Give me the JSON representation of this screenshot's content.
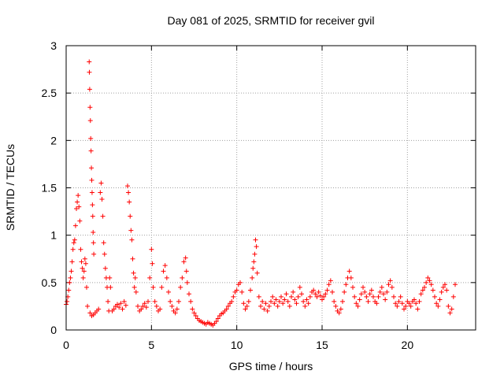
{
  "chart_data": {
    "type": "scatter",
    "title": "Day 081 of 2025, SRMTID for receiver gvil",
    "xlabel": "GPS time / hours",
    "ylabel": "SRMTID / TECUs",
    "xlim": [
      0,
      24
    ],
    "ylim": [
      0,
      3
    ],
    "x_ticks": [
      "0",
      "5",
      "10",
      "15",
      "20"
    ],
    "y_ticks": [
      "0",
      "0.5",
      "1",
      "1.5",
      "2",
      "2.5",
      "3"
    ],
    "grid": true,
    "marker": "+",
    "marker_color": "#ff0000",
    "series": [
      {
        "name": "SRMTID",
        "points": [
          [
            0.0,
            0.27
          ],
          [
            0.05,
            0.3
          ],
          [
            0.1,
            0.35
          ],
          [
            0.15,
            0.42
          ],
          [
            0.2,
            0.5
          ],
          [
            0.25,
            0.55
          ],
          [
            0.3,
            0.62
          ],
          [
            0.35,
            0.72
          ],
          [
            0.4,
            0.85
          ],
          [
            0.45,
            0.92
          ],
          [
            0.5,
            0.95
          ],
          [
            0.55,
            1.1
          ],
          [
            0.6,
            1.28
          ],
          [
            0.65,
            1.35
          ],
          [
            0.7,
            1.42
          ],
          [
            0.75,
            1.3
          ],
          [
            0.8,
            1.15
          ],
          [
            0.85,
            0.85
          ],
          [
            0.9,
            0.72
          ],
          [
            0.95,
            0.65
          ],
          [
            1.0,
            0.55
          ],
          [
            1.05,
            0.62
          ],
          [
            1.1,
            0.75
          ],
          [
            1.15,
            0.7
          ],
          [
            1.2,
            0.45
          ],
          [
            1.25,
            0.25
          ],
          [
            1.35,
            2.83
          ],
          [
            1.36,
            2.72
          ],
          [
            1.38,
            2.54
          ],
          [
            1.4,
            2.35
          ],
          [
            1.42,
            2.21
          ],
          [
            1.44,
            2.02
          ],
          [
            1.46,
            1.89
          ],
          [
            1.48,
            1.71
          ],
          [
            1.5,
            1.58
          ],
          [
            1.52,
            1.45
          ],
          [
            1.54,
            1.32
          ],
          [
            1.56,
            1.2
          ],
          [
            1.58,
            1.03
          ],
          [
            1.6,
            0.92
          ],
          [
            1.62,
            0.8
          ],
          [
            1.4,
            0.18
          ],
          [
            1.5,
            0.15
          ],
          [
            1.6,
            0.16
          ],
          [
            1.7,
            0.18
          ],
          [
            1.8,
            0.2
          ],
          [
            1.9,
            0.22
          ],
          [
            2.0,
            1.45
          ],
          [
            2.05,
            1.55
          ],
          [
            2.1,
            1.38
          ],
          [
            2.15,
            1.2
          ],
          [
            2.2,
            0.92
          ],
          [
            2.25,
            0.8
          ],
          [
            2.3,
            0.65
          ],
          [
            2.35,
            0.55
          ],
          [
            2.4,
            0.45
          ],
          [
            2.45,
            0.3
          ],
          [
            2.5,
            0.2
          ],
          [
            2.55,
            0.55
          ],
          [
            2.6,
            0.45
          ],
          [
            2.7,
            0.2
          ],
          [
            2.8,
            0.22
          ],
          [
            2.9,
            0.25
          ],
          [
            3.0,
            0.27
          ],
          [
            3.1,
            0.24
          ],
          [
            3.2,
            0.28
          ],
          [
            3.3,
            0.22
          ],
          [
            3.4,
            0.3
          ],
          [
            3.5,
            0.26
          ],
          [
            3.6,
            1.52
          ],
          [
            3.65,
            1.45
          ],
          [
            3.7,
            1.35
          ],
          [
            3.75,
            1.2
          ],
          [
            3.8,
            1.05
          ],
          [
            3.85,
            0.95
          ],
          [
            3.9,
            0.75
          ],
          [
            3.95,
            0.6
          ],
          [
            4.0,
            0.45
          ],
          [
            4.05,
            0.55
          ],
          [
            4.1,
            0.4
          ],
          [
            4.2,
            0.25
          ],
          [
            4.3,
            0.2
          ],
          [
            4.4,
            0.22
          ],
          [
            4.5,
            0.25
          ],
          [
            4.6,
            0.28
          ],
          [
            4.7,
            0.24
          ],
          [
            4.8,
            0.3
          ],
          [
            4.9,
            0.55
          ],
          [
            5.0,
            0.85
          ],
          [
            5.05,
            0.7
          ],
          [
            5.1,
            0.45
          ],
          [
            5.2,
            0.3
          ],
          [
            5.3,
            0.25
          ],
          [
            5.4,
            0.2
          ],
          [
            5.5,
            0.22
          ],
          [
            5.6,
            0.45
          ],
          [
            5.7,
            0.62
          ],
          [
            5.8,
            0.68
          ],
          [
            5.9,
            0.55
          ],
          [
            6.0,
            0.4
          ],
          [
            6.1,
            0.3
          ],
          [
            6.2,
            0.25
          ],
          [
            6.3,
            0.2
          ],
          [
            6.4,
            0.18
          ],
          [
            6.5,
            0.22
          ],
          [
            6.6,
            0.3
          ],
          [
            6.7,
            0.45
          ],
          [
            6.8,
            0.55
          ],
          [
            6.9,
            0.72
          ],
          [
            7.0,
            0.76
          ],
          [
            7.05,
            0.62
          ],
          [
            7.1,
            0.5
          ],
          [
            7.2,
            0.38
          ],
          [
            7.3,
            0.3
          ],
          [
            7.4,
            0.22
          ],
          [
            7.5,
            0.18
          ],
          [
            7.6,
            0.15
          ],
          [
            7.7,
            0.12
          ],
          [
            7.8,
            0.1
          ],
          [
            7.9,
            0.09
          ],
          [
            8.0,
            0.08
          ],
          [
            8.1,
            0.07
          ],
          [
            8.2,
            0.06
          ],
          [
            8.3,
            0.08
          ],
          [
            8.4,
            0.07
          ],
          [
            8.5,
            0.06
          ],
          [
            8.6,
            0.05
          ],
          [
            8.7,
            0.07
          ],
          [
            8.8,
            0.09
          ],
          [
            8.9,
            0.12
          ],
          [
            9.0,
            0.15
          ],
          [
            9.1,
            0.17
          ],
          [
            9.2,
            0.18
          ],
          [
            9.3,
            0.2
          ],
          [
            9.4,
            0.22
          ],
          [
            9.5,
            0.25
          ],
          [
            9.6,
            0.28
          ],
          [
            9.7,
            0.3
          ],
          [
            9.8,
            0.35
          ],
          [
            9.9,
            0.4
          ],
          [
            10.0,
            0.42
          ],
          [
            10.1,
            0.48
          ],
          [
            10.2,
            0.5
          ],
          [
            10.3,
            0.4
          ],
          [
            10.4,
            0.28
          ],
          [
            10.5,
            0.22
          ],
          [
            10.6,
            0.25
          ],
          [
            10.7,
            0.3
          ],
          [
            10.8,
            0.42
          ],
          [
            10.9,
            0.55
          ],
          [
            10.95,
            0.65
          ],
          [
            11.0,
            0.72
          ],
          [
            11.05,
            0.8
          ],
          [
            11.1,
            0.95
          ],
          [
            11.15,
            0.88
          ],
          [
            11.2,
            0.6
          ],
          [
            11.3,
            0.35
          ],
          [
            11.4,
            0.25
          ],
          [
            11.5,
            0.3
          ],
          [
            11.6,
            0.22
          ],
          [
            11.7,
            0.28
          ],
          [
            11.8,
            0.2
          ],
          [
            11.9,
            0.25
          ],
          [
            12.0,
            0.3
          ],
          [
            12.1,
            0.35
          ],
          [
            12.2,
            0.28
          ],
          [
            12.3,
            0.32
          ],
          [
            12.4,
            0.25
          ],
          [
            12.5,
            0.3
          ],
          [
            12.6,
            0.35
          ],
          [
            12.7,
            0.28
          ],
          [
            12.8,
            0.32
          ],
          [
            12.9,
            0.38
          ],
          [
            13.0,
            0.3
          ],
          [
            13.1,
            0.25
          ],
          [
            13.2,
            0.35
          ],
          [
            13.3,
            0.4
          ],
          [
            13.4,
            0.32
          ],
          [
            13.5,
            0.28
          ],
          [
            13.6,
            0.35
          ],
          [
            13.7,
            0.45
          ],
          [
            13.8,
            0.38
          ],
          [
            13.9,
            0.3
          ],
          [
            14.0,
            0.25
          ],
          [
            14.1,
            0.32
          ],
          [
            14.2,
            0.28
          ],
          [
            14.3,
            0.35
          ],
          [
            14.4,
            0.4
          ],
          [
            14.5,
            0.42
          ],
          [
            14.6,
            0.38
          ],
          [
            14.7,
            0.35
          ],
          [
            14.8,
            0.4
          ],
          [
            14.9,
            0.36
          ],
          [
            15.0,
            0.32
          ],
          [
            15.1,
            0.35
          ],
          [
            15.2,
            0.38
          ],
          [
            15.3,
            0.42
          ],
          [
            15.4,
            0.48
          ],
          [
            15.5,
            0.52
          ],
          [
            15.6,
            0.4
          ],
          [
            15.7,
            0.3
          ],
          [
            15.8,
            0.25
          ],
          [
            15.9,
            0.2
          ],
          [
            16.0,
            0.18
          ],
          [
            16.1,
            0.22
          ],
          [
            16.2,
            0.3
          ],
          [
            16.3,
            0.4
          ],
          [
            16.4,
            0.48
          ],
          [
            16.5,
            0.55
          ],
          [
            16.6,
            0.62
          ],
          [
            16.7,
            0.55
          ],
          [
            16.8,
            0.45
          ],
          [
            16.9,
            0.35
          ],
          [
            17.0,
            0.28
          ],
          [
            17.1,
            0.25
          ],
          [
            17.2,
            0.32
          ],
          [
            17.3,
            0.38
          ],
          [
            17.4,
            0.45
          ],
          [
            17.5,
            0.4
          ],
          [
            17.6,
            0.35
          ],
          [
            17.7,
            0.3
          ],
          [
            17.8,
            0.38
          ],
          [
            17.9,
            0.42
          ],
          [
            18.0,
            0.35
          ],
          [
            18.1,
            0.3
          ],
          [
            18.2,
            0.28
          ],
          [
            18.3,
            0.35
          ],
          [
            18.4,
            0.4
          ],
          [
            18.5,
            0.45
          ],
          [
            18.6,
            0.38
          ],
          [
            18.7,
            0.32
          ],
          [
            18.8,
            0.4
          ],
          [
            18.9,
            0.48
          ],
          [
            19.0,
            0.52
          ],
          [
            19.1,
            0.45
          ],
          [
            19.2,
            0.35
          ],
          [
            19.3,
            0.28
          ],
          [
            19.4,
            0.25
          ],
          [
            19.5,
            0.3
          ],
          [
            19.6,
            0.35
          ],
          [
            19.7,
            0.28
          ],
          [
            19.8,
            0.22
          ],
          [
            19.9,
            0.25
          ],
          [
            20.0,
            0.3
          ],
          [
            20.1,
            0.28
          ],
          [
            20.2,
            0.25
          ],
          [
            20.3,
            0.3
          ],
          [
            20.4,
            0.32
          ],
          [
            20.5,
            0.28
          ],
          [
            20.6,
            0.22
          ],
          [
            20.7,
            0.3
          ],
          [
            20.8,
            0.38
          ],
          [
            20.9,
            0.42
          ],
          [
            21.0,
            0.45
          ],
          [
            21.1,
            0.5
          ],
          [
            21.2,
            0.55
          ],
          [
            21.3,
            0.52
          ],
          [
            21.4,
            0.48
          ],
          [
            21.5,
            0.42
          ],
          [
            21.6,
            0.35
          ],
          [
            21.7,
            0.28
          ],
          [
            21.8,
            0.25
          ],
          [
            21.9,
            0.32
          ],
          [
            22.0,
            0.4
          ],
          [
            22.1,
            0.45
          ],
          [
            22.2,
            0.48
          ],
          [
            22.3,
            0.42
          ],
          [
            22.4,
            0.25
          ],
          [
            22.5,
            0.18
          ],
          [
            22.6,
            0.22
          ],
          [
            22.7,
            0.35
          ],
          [
            22.8,
            0.48
          ]
        ]
      }
    ]
  }
}
